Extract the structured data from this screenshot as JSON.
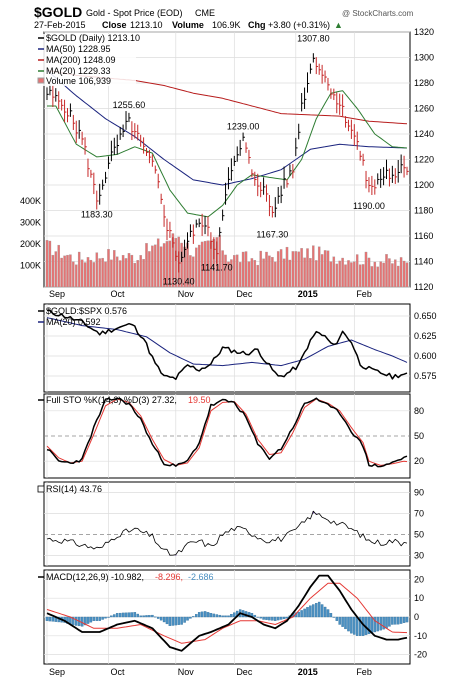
{
  "header": {
    "symbol": "$GOLD",
    "name": "Gold - Spot Price (EOD)",
    "exchange": "CME",
    "date": "27-Feb-2015",
    "close_label": "Close",
    "close_value": "1213.10",
    "volume_label": "Volume",
    "volume_value": "106.9K",
    "chg_label": "Chg",
    "chg_value": "+3.80 (+0.31%)",
    "chg_arrow": "▲",
    "watermark": "@ StockCharts.com"
  },
  "colors": {
    "price": "#000000",
    "ma50": "#1a237e",
    "ma200": "#b71c1c",
    "ma20": "#2e7d32",
    "volume": "#e57373",
    "volume_border": "#9e9e9e",
    "stoK": "#000000",
    "stoD": "#e53935",
    "macd": "#000000",
    "signal": "#e53935",
    "hist": "#4a90c2",
    "ratio": "#000000",
    "ratio_ma": "#1a237e"
  },
  "x_axis": {
    "months": [
      {
        "label": "Sep",
        "index": 0,
        "bold": false
      },
      {
        "label": "Oct",
        "index": 21,
        "bold": false
      },
      {
        "label": "Nov",
        "index": 44,
        "bold": false
      },
      {
        "label": "Dec",
        "index": 64,
        "bold": false
      },
      {
        "label": "2015",
        "index": 85,
        "bold": true
      },
      {
        "label": "Feb",
        "index": 105,
        "bold": false
      }
    ],
    "total_points": 124
  },
  "legend": {
    "price": "$GOLD (Daily) 1213.10",
    "ma50": "MA(50) 1228.95",
    "ma200": "MA(200) 1248.09",
    "ma20": "MA(20) 1229.33",
    "volume": "Volume 106,939",
    "ratio": "$GOLD:$SPX 0.576",
    "ratio_ma": "MA(20) 0.592",
    "sto_title": "Full STO %K(14,3) %D(3) 27.32,",
    "sto_d": "19.50",
    "rsi": "RSI(14) 43.76",
    "macd_title": "MACD(12,26,9) -10.982,",
    "macd_signal": "-8.296,",
    "macd_hist": "-2.686"
  },
  "chart_data": [
    {
      "type": "line",
      "title": "$GOLD (Daily) 1213.10",
      "ylim": [
        1120,
        1320
      ],
      "yticks": [
        1120,
        1140,
        1160,
        1180,
        1200,
        1220,
        1240,
        1260,
        1280,
        1300,
        1320
      ],
      "volume_ticks": [
        "100K",
        "200K",
        "300K",
        "400K"
      ],
      "volume_tick_values": [
        100,
        200,
        300,
        400
      ],
      "annotations": [
        {
          "label": "1183.30",
          "index": 17,
          "value": 1183.3
        },
        {
          "label": "1255.60",
          "index": 28,
          "value": 1255.6
        },
        {
          "label": "1130.40",
          "index": 45,
          "value": 1130.4
        },
        {
          "label": "1141.70",
          "index": 58,
          "value": 1141.7
        },
        {
          "label": "1239.00",
          "index": 67,
          "value": 1239.0
        },
        {
          "label": "1167.30",
          "index": 77,
          "value": 1167.3
        },
        {
          "label": "1307.80",
          "index": 91,
          "value": 1307.8
        },
        {
          "label": "1190.00",
          "index": 110,
          "value": 1190.0
        }
      ],
      "price_keys": [
        [
          0,
          1272
        ],
        [
          6,
          1262
        ],
        [
          12,
          1236
        ],
        [
          17,
          1188
        ],
        [
          22,
          1222
        ],
        [
          28,
          1250
        ],
        [
          32,
          1232
        ],
        [
          37,
          1210
        ],
        [
          41,
          1168
        ],
        [
          45,
          1140
        ],
        [
          49,
          1160
        ],
        [
          53,
          1172
        ],
        [
          58,
          1148
        ],
        [
          61,
          1196
        ],
        [
          65,
          1222
        ],
        [
          67,
          1235
        ],
        [
          70,
          1210
        ],
        [
          74,
          1196
        ],
        [
          77,
          1178
        ],
        [
          80,
          1196
        ],
        [
          84,
          1212
        ],
        [
          87,
          1262
        ],
        [
          90,
          1290
        ],
        [
          91,
          1302
        ],
        [
          94,
          1287
        ],
        [
          97,
          1276
        ],
        [
          101,
          1258
        ],
        [
          104,
          1244
        ],
        [
          106,
          1232
        ],
        [
          109,
          1206
        ],
        [
          111,
          1196
        ],
        [
          113,
          1203
        ],
        [
          116,
          1210
        ],
        [
          119,
          1203
        ],
        [
          121,
          1212
        ],
        [
          123,
          1213
        ]
      ],
      "ma50_keys": [
        [
          0,
          1290
        ],
        [
          10,
          1270
        ],
        [
          20,
          1252
        ],
        [
          30,
          1238
        ],
        [
          40,
          1220
        ],
        [
          50,
          1204
        ],
        [
          60,
          1200
        ],
        [
          70,
          1205
        ],
        [
          80,
          1212
        ],
        [
          90,
          1228
        ],
        [
          100,
          1232
        ],
        [
          110,
          1230
        ],
        [
          123,
          1229
        ]
      ],
      "ma200_keys": [
        [
          0,
          1290
        ],
        [
          10,
          1286
        ],
        [
          20,
          1284
        ],
        [
          30,
          1282
        ],
        [
          40,
          1278
        ],
        [
          50,
          1272
        ],
        [
          60,
          1268
        ],
        [
          70,
          1262
        ],
        [
          80,
          1256
        ],
        [
          90,
          1255
        ],
        [
          100,
          1254
        ],
        [
          110,
          1250
        ],
        [
          123,
          1248
        ]
      ],
      "ma20_keys": [
        [
          3,
          1262
        ],
        [
          10,
          1232
        ],
        [
          17,
          1222
        ],
        [
          24,
          1224
        ],
        [
          30,
          1230
        ],
        [
          36,
          1225
        ],
        [
          42,
          1196
        ],
        [
          48,
          1178
        ],
        [
          55,
          1175
        ],
        [
          60,
          1184
        ],
        [
          65,
          1200
        ],
        [
          70,
          1208
        ],
        [
          76,
          1206
        ],
        [
          82,
          1204
        ],
        [
          87,
          1220
        ],
        [
          92,
          1252
        ],
        [
          97,
          1272
        ],
        [
          101,
          1274
        ],
        [
          106,
          1260
        ],
        [
          112,
          1240
        ],
        [
          118,
          1230
        ],
        [
          123,
          1229
        ]
      ],
      "volume_keys": [
        [
          0,
          190
        ],
        [
          10,
          130
        ],
        [
          20,
          150
        ],
        [
          30,
          140
        ],
        [
          40,
          210
        ],
        [
          45,
          240
        ],
        [
          50,
          160
        ],
        [
          56,
          200
        ],
        [
          58,
          230
        ],
        [
          62,
          140
        ],
        [
          70,
          130
        ],
        [
          80,
          150
        ],
        [
          90,
          160
        ],
        [
          100,
          140
        ],
        [
          110,
          130
        ],
        [
          123,
          107
        ]
      ]
    },
    {
      "type": "line",
      "title": "$GOLD:$SPX 0.576",
      "ylim": [
        0.555,
        0.665
      ],
      "yticks": [
        0.575,
        0.6,
        0.625,
        0.65
      ],
      "ratio_keys": [
        [
          0,
          0.656
        ],
        [
          6,
          0.65
        ],
        [
          12,
          0.642
        ],
        [
          18,
          0.628
        ],
        [
          24,
          0.635
        ],
        [
          29,
          0.64
        ],
        [
          33,
          0.622
        ],
        [
          37,
          0.59
        ],
        [
          40,
          0.574
        ],
        [
          44,
          0.572
        ],
        [
          48,
          0.588
        ],
        [
          52,
          0.583
        ],
        [
          56,
          0.59
        ],
        [
          60,
          0.61
        ],
        [
          64,
          0.606
        ],
        [
          68,
          0.603
        ],
        [
          72,
          0.608
        ],
        [
          75,
          0.592
        ],
        [
          79,
          0.574
        ],
        [
          82,
          0.578
        ],
        [
          86,
          0.588
        ],
        [
          89,
          0.612
        ],
        [
          92,
          0.63
        ],
        [
          95,
          0.624
        ],
        [
          98,
          0.612
        ],
        [
          101,
          0.63
        ],
        [
          104,
          0.618
        ],
        [
          107,
          0.59
        ],
        [
          111,
          0.582
        ],
        [
          115,
          0.578
        ],
        [
          118,
          0.574
        ],
        [
          121,
          0.577
        ],
        [
          123,
          0.576
        ]
      ],
      "ratio_ma_keys": [
        [
          0,
          0.648
        ],
        [
          12,
          0.638
        ],
        [
          24,
          0.633
        ],
        [
          34,
          0.624
        ],
        [
          42,
          0.604
        ],
        [
          50,
          0.59
        ],
        [
          60,
          0.588
        ],
        [
          70,
          0.592
        ],
        [
          80,
          0.588
        ],
        [
          88,
          0.596
        ],
        [
          96,
          0.612
        ],
        [
          104,
          0.62
        ],
        [
          112,
          0.608
        ],
        [
          118,
          0.6
        ],
        [
          123,
          0.592
        ]
      ]
    },
    {
      "type": "line",
      "title": "Full STO %K(14,3) %D(3)",
      "ylim": [
        0,
        100
      ],
      "yticks": [
        20,
        50,
        80
      ],
      "k_keys": [
        [
          0,
          35
        ],
        [
          4,
          20
        ],
        [
          8,
          18
        ],
        [
          12,
          22
        ],
        [
          16,
          60
        ],
        [
          20,
          92
        ],
        [
          24,
          95
        ],
        [
          28,
          88
        ],
        [
          32,
          70
        ],
        [
          36,
          40
        ],
        [
          40,
          18
        ],
        [
          44,
          14
        ],
        [
          48,
          20
        ],
        [
          52,
          42
        ],
        [
          56,
          86
        ],
        [
          60,
          92
        ],
        [
          64,
          90
        ],
        [
          68,
          72
        ],
        [
          72,
          40
        ],
        [
          76,
          24
        ],
        [
          80,
          35
        ],
        [
          84,
          60
        ],
        [
          88,
          88
        ],
        [
          92,
          95
        ],
        [
          96,
          86
        ],
        [
          100,
          78
        ],
        [
          104,
          56
        ],
        [
          108,
          38
        ],
        [
          110,
          16
        ],
        [
          114,
          14
        ],
        [
          118,
          18
        ],
        [
          122,
          24
        ],
        [
          123,
          27
        ]
      ],
      "d_keys": [
        [
          0,
          38
        ],
        [
          4,
          24
        ],
        [
          8,
          18
        ],
        [
          12,
          20
        ],
        [
          16,
          52
        ],
        [
          20,
          86
        ],
        [
          24,
          94
        ],
        [
          28,
          90
        ],
        [
          32,
          74
        ],
        [
          36,
          46
        ],
        [
          40,
          22
        ],
        [
          44,
          15
        ],
        [
          48,
          18
        ],
        [
          52,
          36
        ],
        [
          56,
          80
        ],
        [
          60,
          90
        ],
        [
          64,
          91
        ],
        [
          68,
          76
        ],
        [
          72,
          46
        ],
        [
          76,
          28
        ],
        [
          80,
          30
        ],
        [
          84,
          54
        ],
        [
          88,
          84
        ],
        [
          92,
          94
        ],
        [
          96,
          89
        ],
        [
          100,
          80
        ],
        [
          104,
          60
        ],
        [
          108,
          42
        ],
        [
          110,
          20
        ],
        [
          114,
          15
        ],
        [
          118,
          17
        ],
        [
          122,
          20
        ],
        [
          123,
          19.5
        ]
      ]
    },
    {
      "type": "line",
      "title": "RSI(14)",
      "ylim": [
        20,
        100
      ],
      "yticks": [
        30,
        50,
        70,
        90
      ],
      "rsi_keys": [
        [
          0,
          46
        ],
        [
          6,
          44
        ],
        [
          12,
          40
        ],
        [
          18,
          36
        ],
        [
          24,
          50
        ],
        [
          30,
          55
        ],
        [
          36,
          48
        ],
        [
          40,
          34
        ],
        [
          44,
          30
        ],
        [
          48,
          40
        ],
        [
          52,
          44
        ],
        [
          56,
          38
        ],
        [
          60,
          50
        ],
        [
          64,
          56
        ],
        [
          68,
          54
        ],
        [
          72,
          48
        ],
        [
          76,
          44
        ],
        [
          80,
          46
        ],
        [
          84,
          52
        ],
        [
          88,
          62
        ],
        [
          91,
          70
        ],
        [
          94,
          68
        ],
        [
          98,
          62
        ],
        [
          102,
          58
        ],
        [
          106,
          52
        ],
        [
          110,
          44
        ],
        [
          114,
          42
        ],
        [
          118,
          44
        ],
        [
          121,
          42
        ],
        [
          123,
          44
        ]
      ]
    },
    {
      "type": "bar",
      "title": "MACD(12,26,9)",
      "ylim": [
        -25,
        25
      ],
      "yticks": [
        -20,
        -10,
        0,
        10,
        20
      ],
      "macd_keys": [
        [
          0,
          2
        ],
        [
          6,
          -2
        ],
        [
          12,
          -8
        ],
        [
          18,
          -8
        ],
        [
          24,
          -4
        ],
        [
          30,
          -2
        ],
        [
          36,
          -6
        ],
        [
          42,
          -16
        ],
        [
          46,
          -18
        ],
        [
          52,
          -10
        ],
        [
          56,
          -8
        ],
        [
          62,
          -4
        ],
        [
          66,
          2
        ],
        [
          70,
          0
        ],
        [
          74,
          -4
        ],
        [
          78,
          -6
        ],
        [
          82,
          -2
        ],
        [
          86,
          6
        ],
        [
          90,
          16
        ],
        [
          93,
          22
        ],
        [
          96,
          22
        ],
        [
          100,
          14
        ],
        [
          104,
          4
        ],
        [
          108,
          -4
        ],
        [
          112,
          -10
        ],
        [
          116,
          -12
        ],
        [
          120,
          -12
        ],
        [
          123,
          -11
        ]
      ],
      "signal_keys": [
        [
          0,
          4
        ],
        [
          8,
          0
        ],
        [
          16,
          -6
        ],
        [
          24,
          -6
        ],
        [
          32,
          -4
        ],
        [
          40,
          -10
        ],
        [
          46,
          -14
        ],
        [
          54,
          -12
        ],
        [
          60,
          -6
        ],
        [
          66,
          -2
        ],
        [
          72,
          -2
        ],
        [
          78,
          -4
        ],
        [
          84,
          0
        ],
        [
          90,
          10
        ],
        [
          96,
          18
        ],
        [
          100,
          18
        ],
        [
          106,
          10
        ],
        [
          112,
          -2
        ],
        [
          118,
          -8
        ],
        [
          123,
          -8.3
        ]
      ]
    }
  ]
}
